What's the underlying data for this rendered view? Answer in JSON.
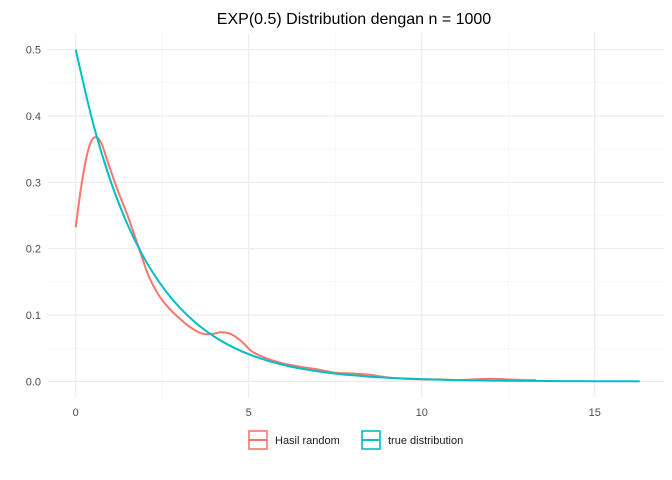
{
  "chart_data": {
    "type": "line",
    "title": "EXP(0.5) Distribution dengan n = 1000",
    "xlabel": "",
    "ylabel": "",
    "xlim": [
      -0.8,
      17.0
    ],
    "ylim": [
      -0.025,
      0.525
    ],
    "xticks": [
      0,
      5,
      10,
      15
    ],
    "yticks": [
      0.0,
      0.1,
      0.2,
      0.3,
      0.4,
      0.5
    ],
    "xtick_labels": [
      "0",
      "5",
      "10",
      "15"
    ],
    "ytick_labels": [
      "0.0",
      "0.1",
      "0.2",
      "0.3",
      "0.4",
      "0.5"
    ],
    "grid": true,
    "legend_position": "bottom",
    "series": [
      {
        "name": "Hasil random",
        "color": "#f8766d",
        "x": [
          0.0,
          0.15,
          0.3,
          0.45,
          0.6,
          0.75,
          0.9,
          1.2,
          1.5,
          1.8,
          2.1,
          2.4,
          2.7,
          3.0,
          3.3,
          3.6,
          3.9,
          4.2,
          4.5,
          4.8,
          5.1,
          5.5,
          6.0,
          6.5,
          7.0,
          7.5,
          8.0,
          8.5,
          9.0,
          9.5,
          10.0,
          10.5,
          11.0,
          11.5,
          12.0,
          12.5,
          13.0,
          13.3
        ],
        "y": [
          0.232,
          0.29,
          0.335,
          0.362,
          0.368,
          0.358,
          0.335,
          0.29,
          0.25,
          0.205,
          0.16,
          0.13,
          0.11,
          0.095,
          0.082,
          0.073,
          0.071,
          0.074,
          0.071,
          0.06,
          0.045,
          0.035,
          0.027,
          0.022,
          0.018,
          0.013,
          0.012,
          0.01,
          0.006,
          0.004,
          0.003,
          0.003,
          0.002,
          0.003,
          0.004,
          0.003,
          0.002,
          0.002
        ]
      },
      {
        "name": "true distribution",
        "color": "#00bfc4",
        "x": [
          0,
          0.5,
          1,
          1.5,
          2,
          2.5,
          3,
          3.5,
          4,
          4.5,
          5,
          5.5,
          6,
          6.5,
          7,
          7.5,
          8,
          8.5,
          9,
          9.5,
          10,
          10.5,
          11,
          11.5,
          12,
          12.5,
          13,
          13.5,
          14,
          14.5,
          15,
          15.5,
          16,
          16.3
        ],
        "y": [
          0.5,
          0.3894,
          0.3033,
          0.2362,
          0.1839,
          0.1433,
          0.1116,
          0.0869,
          0.0677,
          0.0527,
          0.041,
          0.032,
          0.0249,
          0.0194,
          0.0151,
          0.0118,
          0.0092,
          0.0071,
          0.0056,
          0.0043,
          0.0034,
          0.0026,
          0.002,
          0.0016,
          0.0012,
          0.001,
          0.0008,
          0.0006,
          0.0005,
          0.0004,
          0.0003,
          0.0002,
          0.0002,
          0.0001
        ]
      }
    ]
  }
}
